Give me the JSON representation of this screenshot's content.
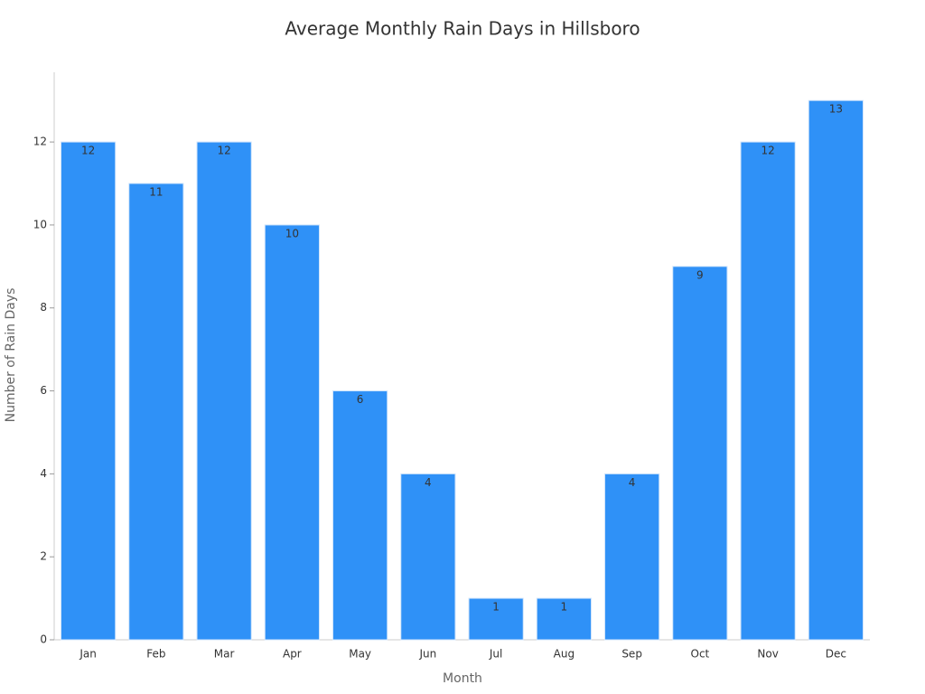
{
  "chart_data": {
    "type": "bar",
    "title": "Average Monthly Rain Days in Hillsboro",
    "x_label": "Month",
    "y_label": "Number of Rain Days",
    "categories": [
      "Jan",
      "Feb",
      "Mar",
      "Apr",
      "May",
      "Jun",
      "Jul",
      "Aug",
      "Sep",
      "Oct",
      "Nov",
      "Dec"
    ],
    "values": [
      12,
      11,
      12,
      10,
      6,
      4,
      1,
      1,
      4,
      9,
      12,
      13
    ],
    "color": "#2f91f7",
    "ylim": [
      0,
      13.68
    ],
    "yticks": [
      0,
      2,
      4,
      6,
      8,
      10,
      12
    ],
    "grid": false
  }
}
